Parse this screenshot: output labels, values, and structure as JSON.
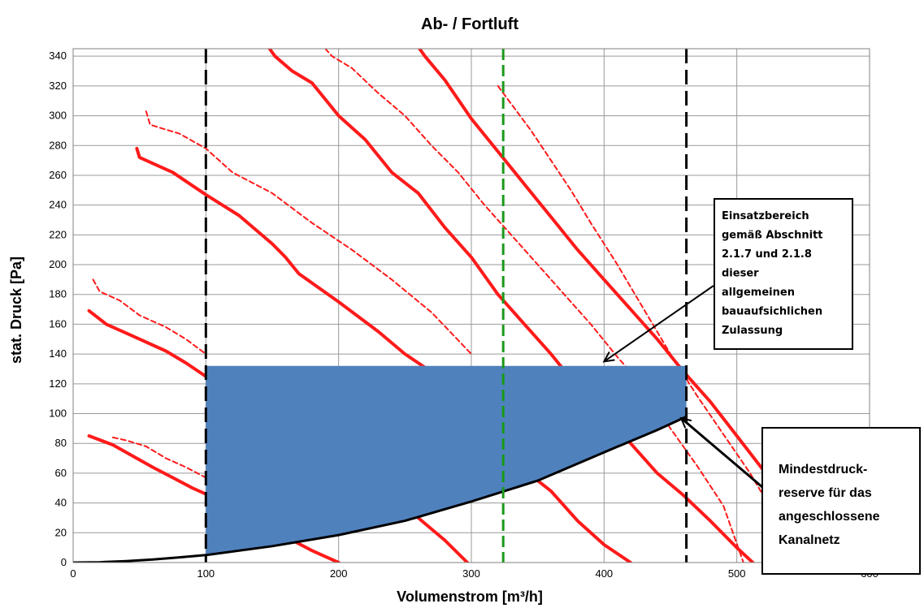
{
  "chart_data": {
    "type": "line",
    "title": "Ab- / Fortluft",
    "xlabel": "Volumenstrom [m³/h]",
    "ylabel": "stat. Druck [Pa]",
    "xlim": [
      0,
      600
    ],
    "ylim": [
      0,
      345
    ],
    "x_ticks": [
      "0",
      "100",
      "200",
      "300",
      "400",
      "500",
      "600"
    ],
    "y_ticks": [
      "0",
      "20",
      "40",
      "60",
      "80",
      "100",
      "120",
      "140",
      "160",
      "180",
      "200",
      "220",
      "240",
      "260",
      "280",
      "300",
      "320",
      "340"
    ],
    "grid": true,
    "colors": {
      "fan_curve": "#ff1a1a",
      "system_curve": "#000000",
      "range_fill": "#4f81bd",
      "limit_line": "#000000",
      "design_line": "#1a9a1a"
    },
    "series": [
      {
        "style": "solid",
        "x": [
          12,
          30,
          48,
          60,
          75,
          90,
          100,
          110,
          140,
          165,
          180,
          200
        ],
        "y": [
          85,
          79,
          70,
          64,
          57,
          50,
          46,
          40,
          28,
          15,
          8,
          0
        ]
      },
      {
        "style": "solid",
        "x": [
          12,
          25,
          45,
          70,
          85,
          100,
          120,
          150,
          175,
          200,
          215,
          240,
          260,
          280,
          297
        ],
        "y": [
          169,
          160,
          152,
          142,
          134,
          125,
          116,
          100,
          88,
          74,
          64,
          44,
          30,
          15,
          0
        ]
      },
      {
        "style": "solid",
        "x": [
          48,
          50,
          55,
          60,
          75,
          100,
          125,
          150,
          160,
          170,
          200,
          230,
          250,
          270,
          290,
          300,
          320,
          340,
          360,
          380,
          400,
          420
        ],
        "y": [
          278,
          272,
          270,
          268,
          262,
          247,
          233,
          214,
          205,
          194,
          175,
          155,
          140,
          128,
          110,
          95,
          78,
          62,
          48,
          28,
          12,
          0
        ]
      },
      {
        "style": "solid",
        "x": [
          144,
          152,
          165,
          180,
          200,
          220,
          240,
          260,
          280,
          300,
          320,
          340,
          360,
          380,
          400,
          420,
          440,
          460,
          480,
          500,
          512
        ],
        "y": [
          350,
          340,
          330,
          322,
          300,
          284,
          262,
          248,
          225,
          205,
          180,
          160,
          140,
          118,
          98,
          80,
          60,
          45,
          28,
          10,
          0
        ]
      },
      {
        "style": "solid",
        "x": [
          257,
          265,
          280,
          300,
          320,
          340,
          360,
          380,
          400,
          420,
          440,
          460,
          480,
          500,
          520,
          540,
          560
        ],
        "y": [
          350,
          340,
          324,
          298,
          276,
          254,
          232,
          210,
          190,
          170,
          150,
          128,
          108,
          85,
          62,
          36,
          0
        ]
      },
      {
        "style": "dashed",
        "x": [
          30,
          40,
          55,
          70,
          85,
          100,
          110,
          130
        ],
        "y": [
          84,
          82,
          78,
          70,
          64,
          57,
          50,
          40
        ]
      },
      {
        "style": "dashed",
        "x": [
          15,
          20,
          35,
          50,
          70,
          85,
          100
        ],
        "y": [
          190,
          182,
          176,
          166,
          158,
          150,
          140
        ]
      },
      {
        "style": "dashed",
        "x": [
          55,
          58,
          65,
          80,
          100,
          120,
          150,
          180,
          210,
          240,
          270,
          300
        ],
        "y": [
          303,
          294,
          292,
          288,
          278,
          262,
          248,
          228,
          210,
          190,
          168,
          140
        ]
      },
      {
        "style": "dashed",
        "x": [
          190,
          195,
          210,
          230,
          250,
          270,
          290,
          310,
          330,
          350,
          370,
          390,
          410,
          430,
          450,
          470,
          490,
          505
        ],
        "y": [
          345,
          340,
          332,
          315,
          300,
          280,
          262,
          240,
          220,
          200,
          180,
          160,
          138,
          118,
          90,
          65,
          38,
          0
        ]
      },
      {
        "style": "dashed",
        "x": [
          320,
          330,
          345,
          360,
          375,
          390,
          410,
          430,
          450,
          470,
          490,
          510,
          530,
          545,
          558
        ],
        "y": [
          320,
          308,
          290,
          270,
          250,
          228,
          200,
          170,
          140,
          112,
          86,
          60,
          30,
          12,
          0
        ]
      }
    ],
    "system_curve": {
      "x": [
        0,
        20,
        40,
        60,
        80,
        100,
        150,
        200,
        250,
        300,
        350,
        400,
        440,
        462
      ],
      "y": [
        0,
        0.2,
        0.9,
        2,
        3.5,
        5,
        11,
        18.5,
        28,
        41,
        55,
        74,
        89,
        98
      ]
    },
    "range_fill": {
      "x_min": 100,
      "x_max": 462,
      "top": 132,
      "bottom_x": [
        100,
        150,
        200,
        250,
        300,
        350,
        400,
        440,
        462
      ],
      "bottom_y": [
        5,
        11,
        18.5,
        28,
        41,
        55,
        74,
        89,
        98
      ]
    },
    "vertical_lines": [
      {
        "x": 100,
        "style": "limit"
      },
      {
        "x": 462,
        "style": "limit"
      },
      {
        "x": 324,
        "style": "design"
      }
    ],
    "annotations": [
      {
        "id": "einsatz",
        "lines": [
          "Einsatzbereich",
          "gemäß Abschnitt",
          "2.1.7 und 2.1.8",
          "dieser",
          "allgemeinen",
          "bauaufsichlichen",
          "Zulassung"
        ],
        "arrow_target": [
          400,
          135
        ]
      },
      {
        "id": "mindest",
        "lines": [
          "Mindestdruck-",
          "reserve für das",
          "angeschlossene",
          "Kanalnetz"
        ],
        "arrow_target": [
          458,
          97
        ]
      }
    ]
  }
}
